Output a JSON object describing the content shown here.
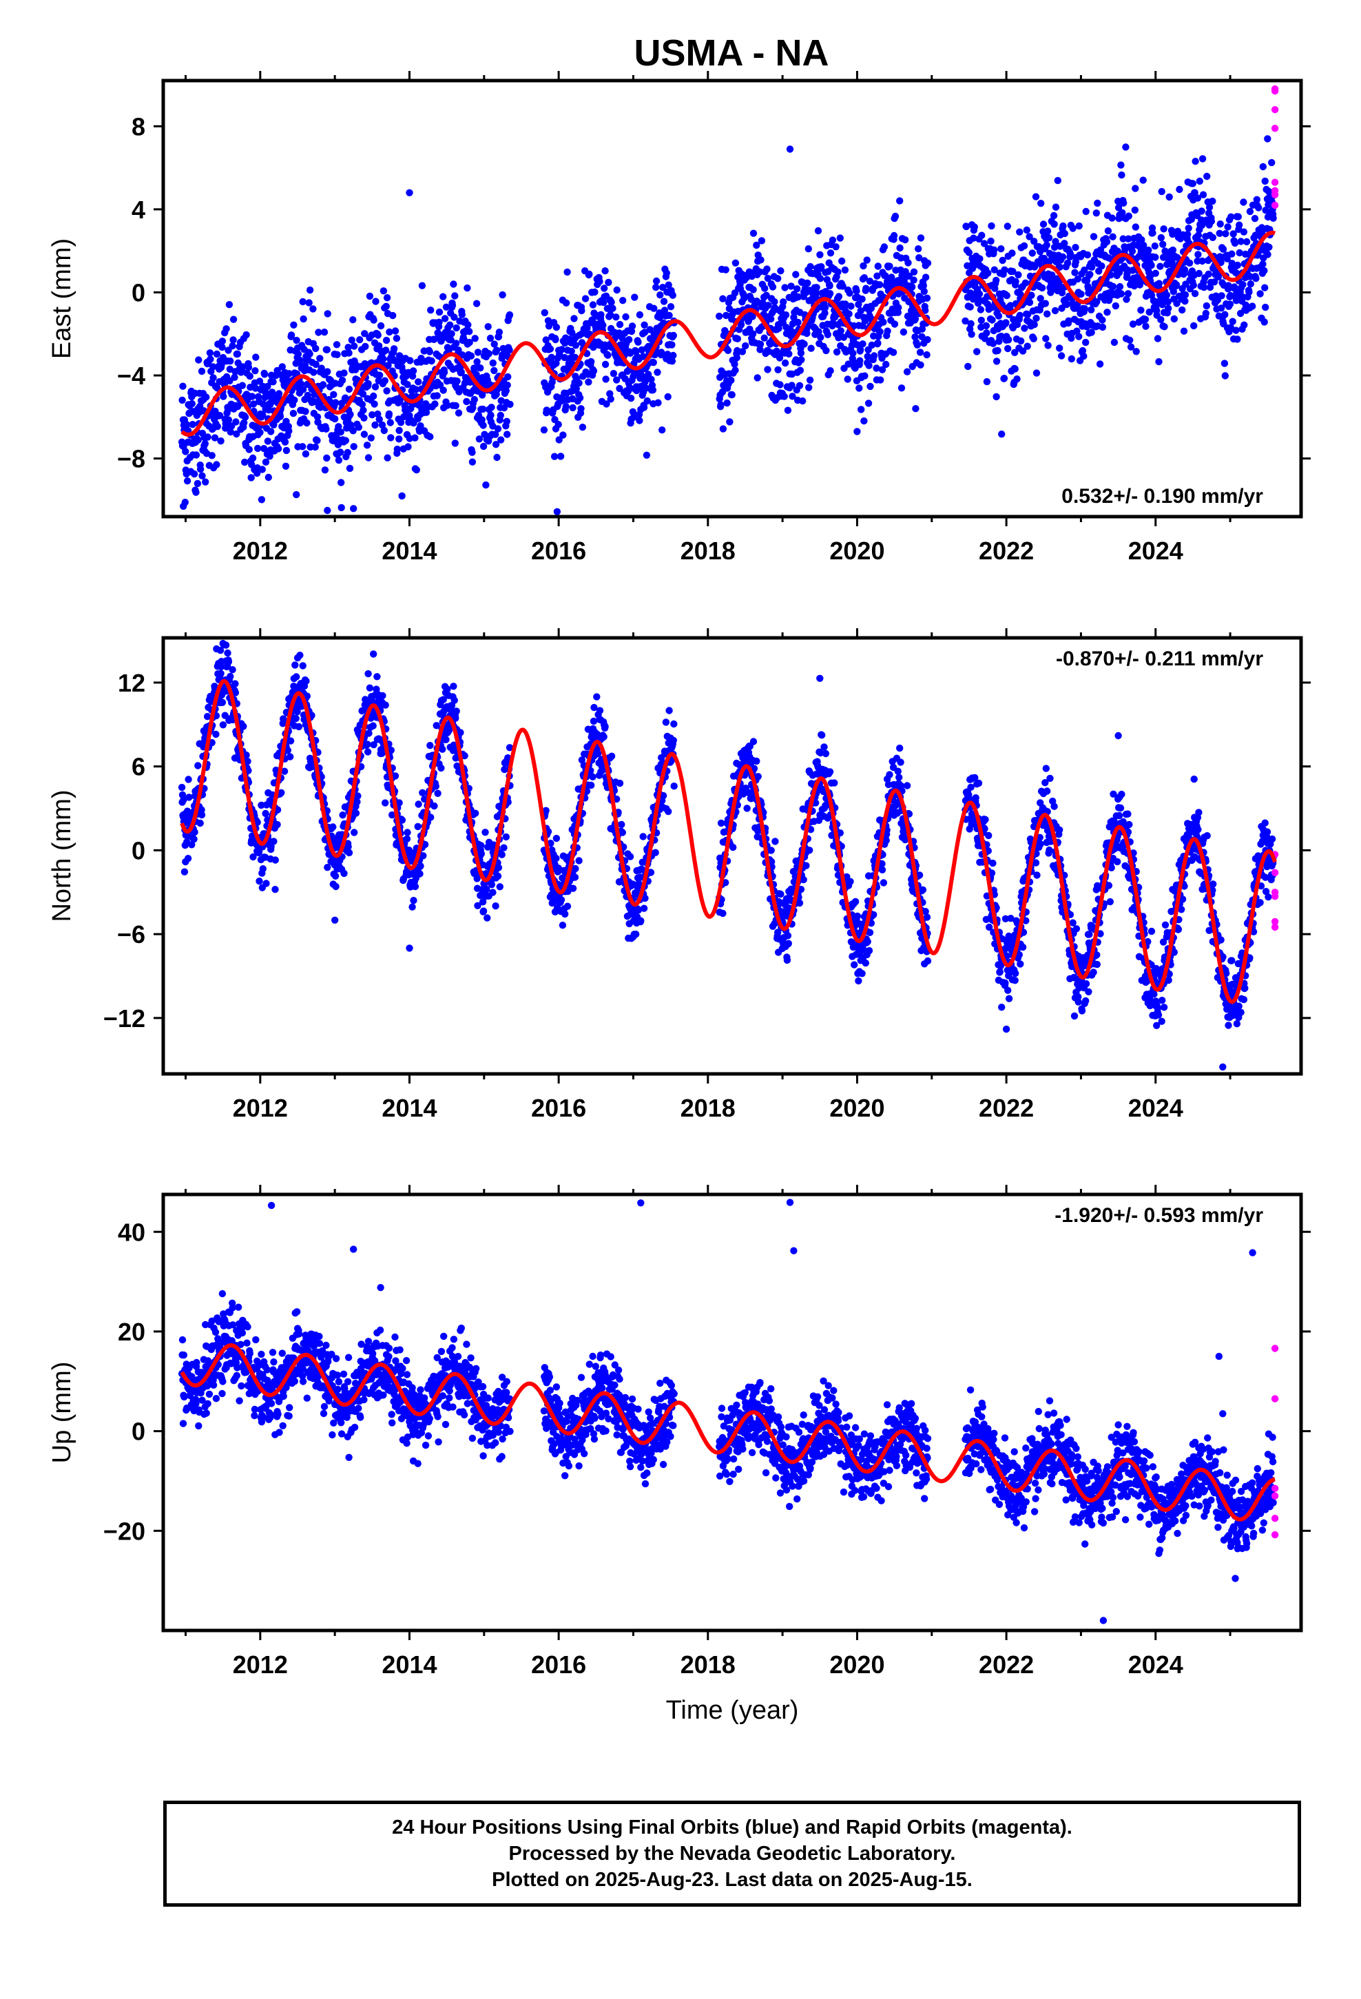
{
  "title": "USMA - NA",
  "footer": {
    "line1": "24 Hour Positions Using Final Orbits (blue) and Rapid Orbits (magenta).",
    "line2": "Processed by the Nevada Geodetic Laboratory.",
    "line3": "Plotted on 2025-Aug-23. Last data on 2025-Aug-15."
  },
  "colors": {
    "final_orbits": "#0000ff",
    "rapid_orbits": "#ff00ff",
    "model_fit": "#ff0000",
    "frame": "#000000"
  },
  "chart_data": [
    {
      "type": "scatter",
      "ylabel": "East (mm)",
      "xlabel": "",
      "xlim": [
        2010.7,
        2025.95
      ],
      "ylim": [
        -10.8,
        10.2
      ],
      "xticks": [
        2012,
        2014,
        2016,
        2018,
        2020,
        2022,
        2024
      ],
      "yticks": [
        -8,
        -4,
        0,
        4,
        8
      ],
      "ytick_labels": [
        "−8",
        "−4",
        "0",
        "4",
        "8"
      ],
      "rate_label": "0.532+/- 0.190 mm/yr",
      "rate_position": "bottom-right",
      "fit": {
        "x": [
          2010.95,
          2025.6
        ],
        "offset_at_start": -5.9,
        "rate": 0.532,
        "seasonal_amplitude": 1.0,
        "seasonal_phase_year": 0.55
      },
      "series": [
        {
          "role": "final",
          "x_range": [
            2010.95,
            2025.58
          ],
          "scatter_sd": 1.6,
          "outliers": [
            [
              2010.97,
              -10.3
            ],
            [
              2012.9,
              -10.5
            ],
            [
              2013.9,
              -9.8
            ],
            [
              2019.1,
              6.9
            ],
            [
              2023.6,
              7.0
            ],
            [
              2025.5,
              7.4
            ],
            [
              2014.0,
              4.8
            ],
            [
              2020.0,
              -6.7
            ]
          ]
        },
        {
          "role": "rapid",
          "x": [
            2025.6,
            2025.6,
            2025.6,
            2025.6,
            2025.6,
            2025.6,
            2025.6,
            2025.6
          ],
          "y": [
            9.8,
            9.7,
            8.8,
            7.9,
            5.3,
            4.9,
            4.7,
            4.2
          ]
        }
      ]
    },
    {
      "type": "scatter",
      "ylabel": "North (mm)",
      "xlabel": "",
      "xlim": [
        2010.7,
        2025.95
      ],
      "ylim": [
        -16.0,
        15.2
      ],
      "xticks": [
        2012,
        2014,
        2016,
        2018,
        2020,
        2022,
        2024
      ],
      "yticks": [
        -12,
        -6,
        0,
        6,
        12
      ],
      "ytick_labels": [
        "−12",
        "−6",
        "0",
        "6",
        "12"
      ],
      "rate_label": "-0.870+/- 0.211 mm/yr",
      "rate_position": "top-right",
      "fit": {
        "x": [
          2010.95,
          2025.6
        ],
        "offset_at_start": 7.0,
        "rate": -0.87,
        "seasonal_amplitude": 5.6,
        "seasonal_phase_year": 0.52
      },
      "series": [
        {
          "role": "final",
          "x_range": [
            2010.95,
            2025.58
          ],
          "scatter_sd": 1.3,
          "outliers": [
            [
              2011.5,
              14.8
            ],
            [
              2013.0,
              -5.0
            ],
            [
              2014.0,
              -7.0
            ],
            [
              2019.5,
              12.3
            ],
            [
              2023.5,
              8.2
            ],
            [
              2024.9,
              -15.5
            ],
            [
              2012.2,
              -2.8
            ],
            [
              2022.0,
              -12.8
            ]
          ]
        },
        {
          "role": "rapid",
          "x": [
            2025.6,
            2025.6,
            2025.6,
            2025.6,
            2025.6,
            2025.6
          ],
          "y": [
            -0.3,
            -1.6,
            -3.0,
            -3.3,
            -5.1,
            -5.5
          ]
        }
      ]
    },
    {
      "type": "scatter",
      "ylabel": "Up (mm)",
      "xlabel": "Time (year)",
      "xlim": [
        2010.7,
        2025.95
      ],
      "ylim": [
        -40.0,
        47.5
      ],
      "xticks": [
        2012,
        2014,
        2016,
        2018,
        2020,
        2022,
        2024
      ],
      "yticks": [
        -20,
        0,
        20,
        40
      ],
      "ytick_labels": [
        "−20",
        "0",
        "20",
        "40"
      ],
      "rate_label": "-1.920+/- 0.593 mm/yr",
      "rate_position": "top-right",
      "fit": {
        "x": [
          2010.95,
          2025.6
        ],
        "offset_at_start": 14.0,
        "rate": -1.92,
        "seasonal_amplitude": 4.5,
        "seasonal_phase_year": 0.62
      },
      "series": [
        {
          "role": "final",
          "x_range": [
            2010.95,
            2025.58
          ],
          "scatter_sd": 3.6,
          "outliers": [
            [
              2012.15,
              45.3
            ],
            [
              2013.25,
              36.5
            ],
            [
              2017.1,
              45.8
            ],
            [
              2019.1,
              45.9
            ],
            [
              2019.15,
              36.2
            ],
            [
              2025.3,
              35.8
            ],
            [
              2024.85,
              15.0
            ],
            [
              2024.9,
              3.5
            ],
            [
              2023.3,
              -38.0
            ]
          ]
        },
        {
          "role": "rapid",
          "x": [
            2025.6,
            2025.6,
            2025.6,
            2025.6,
            2025.6,
            2025.6
          ],
          "y": [
            16.6,
            6.5,
            -11.5,
            -13.0,
            -17.5,
            -20.8
          ]
        }
      ]
    }
  ]
}
